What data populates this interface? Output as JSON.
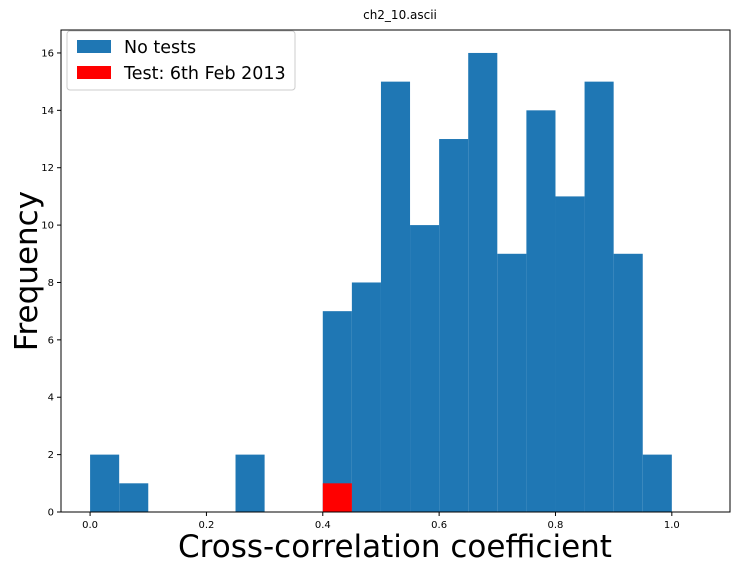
{
  "chart_data": {
    "type": "bar",
    "title": "ch2_10.ascii",
    "xlabel": "Cross-correlation coefficient",
    "ylabel": "Frequency",
    "xlim": [
      -0.05,
      1.1
    ],
    "ylim": [
      0,
      16.8
    ],
    "bin_width": 0.05,
    "xticks": [
      "0.0",
      "0.2",
      "0.4",
      "0.6",
      "0.8",
      "1.0"
    ],
    "xtick_values": [
      0.0,
      0.2,
      0.4,
      0.6,
      0.8,
      1.0
    ],
    "yticks": [
      "0",
      "2",
      "4",
      "6",
      "8",
      "10",
      "12",
      "14",
      "16"
    ],
    "ytick_values": [
      0,
      2,
      4,
      6,
      8,
      10,
      12,
      14,
      16
    ],
    "legend_position": "top-left",
    "series": [
      {
        "name": "No tests",
        "color": "#1f77b4",
        "bins": [
          {
            "x": 0.0,
            "value": 2
          },
          {
            "x": 0.05,
            "value": 1
          },
          {
            "x": 0.25,
            "value": 2
          },
          {
            "x": 0.4,
            "value": 7
          },
          {
            "x": 0.45,
            "value": 8
          },
          {
            "x": 0.5,
            "value": 15
          },
          {
            "x": 0.55,
            "value": 10
          },
          {
            "x": 0.6,
            "value": 13
          },
          {
            "x": 0.65,
            "value": 16
          },
          {
            "x": 0.7,
            "value": 9
          },
          {
            "x": 0.75,
            "value": 14
          },
          {
            "x": 0.8,
            "value": 11
          },
          {
            "x": 0.85,
            "value": 15
          },
          {
            "x": 0.9,
            "value": 9
          },
          {
            "x": 0.95,
            "value": 2
          }
        ]
      },
      {
        "name": "Test: 6th Feb 2013",
        "color": "#ff0000",
        "bins": [
          {
            "x": 0.4,
            "value": 1
          }
        ]
      }
    ]
  }
}
